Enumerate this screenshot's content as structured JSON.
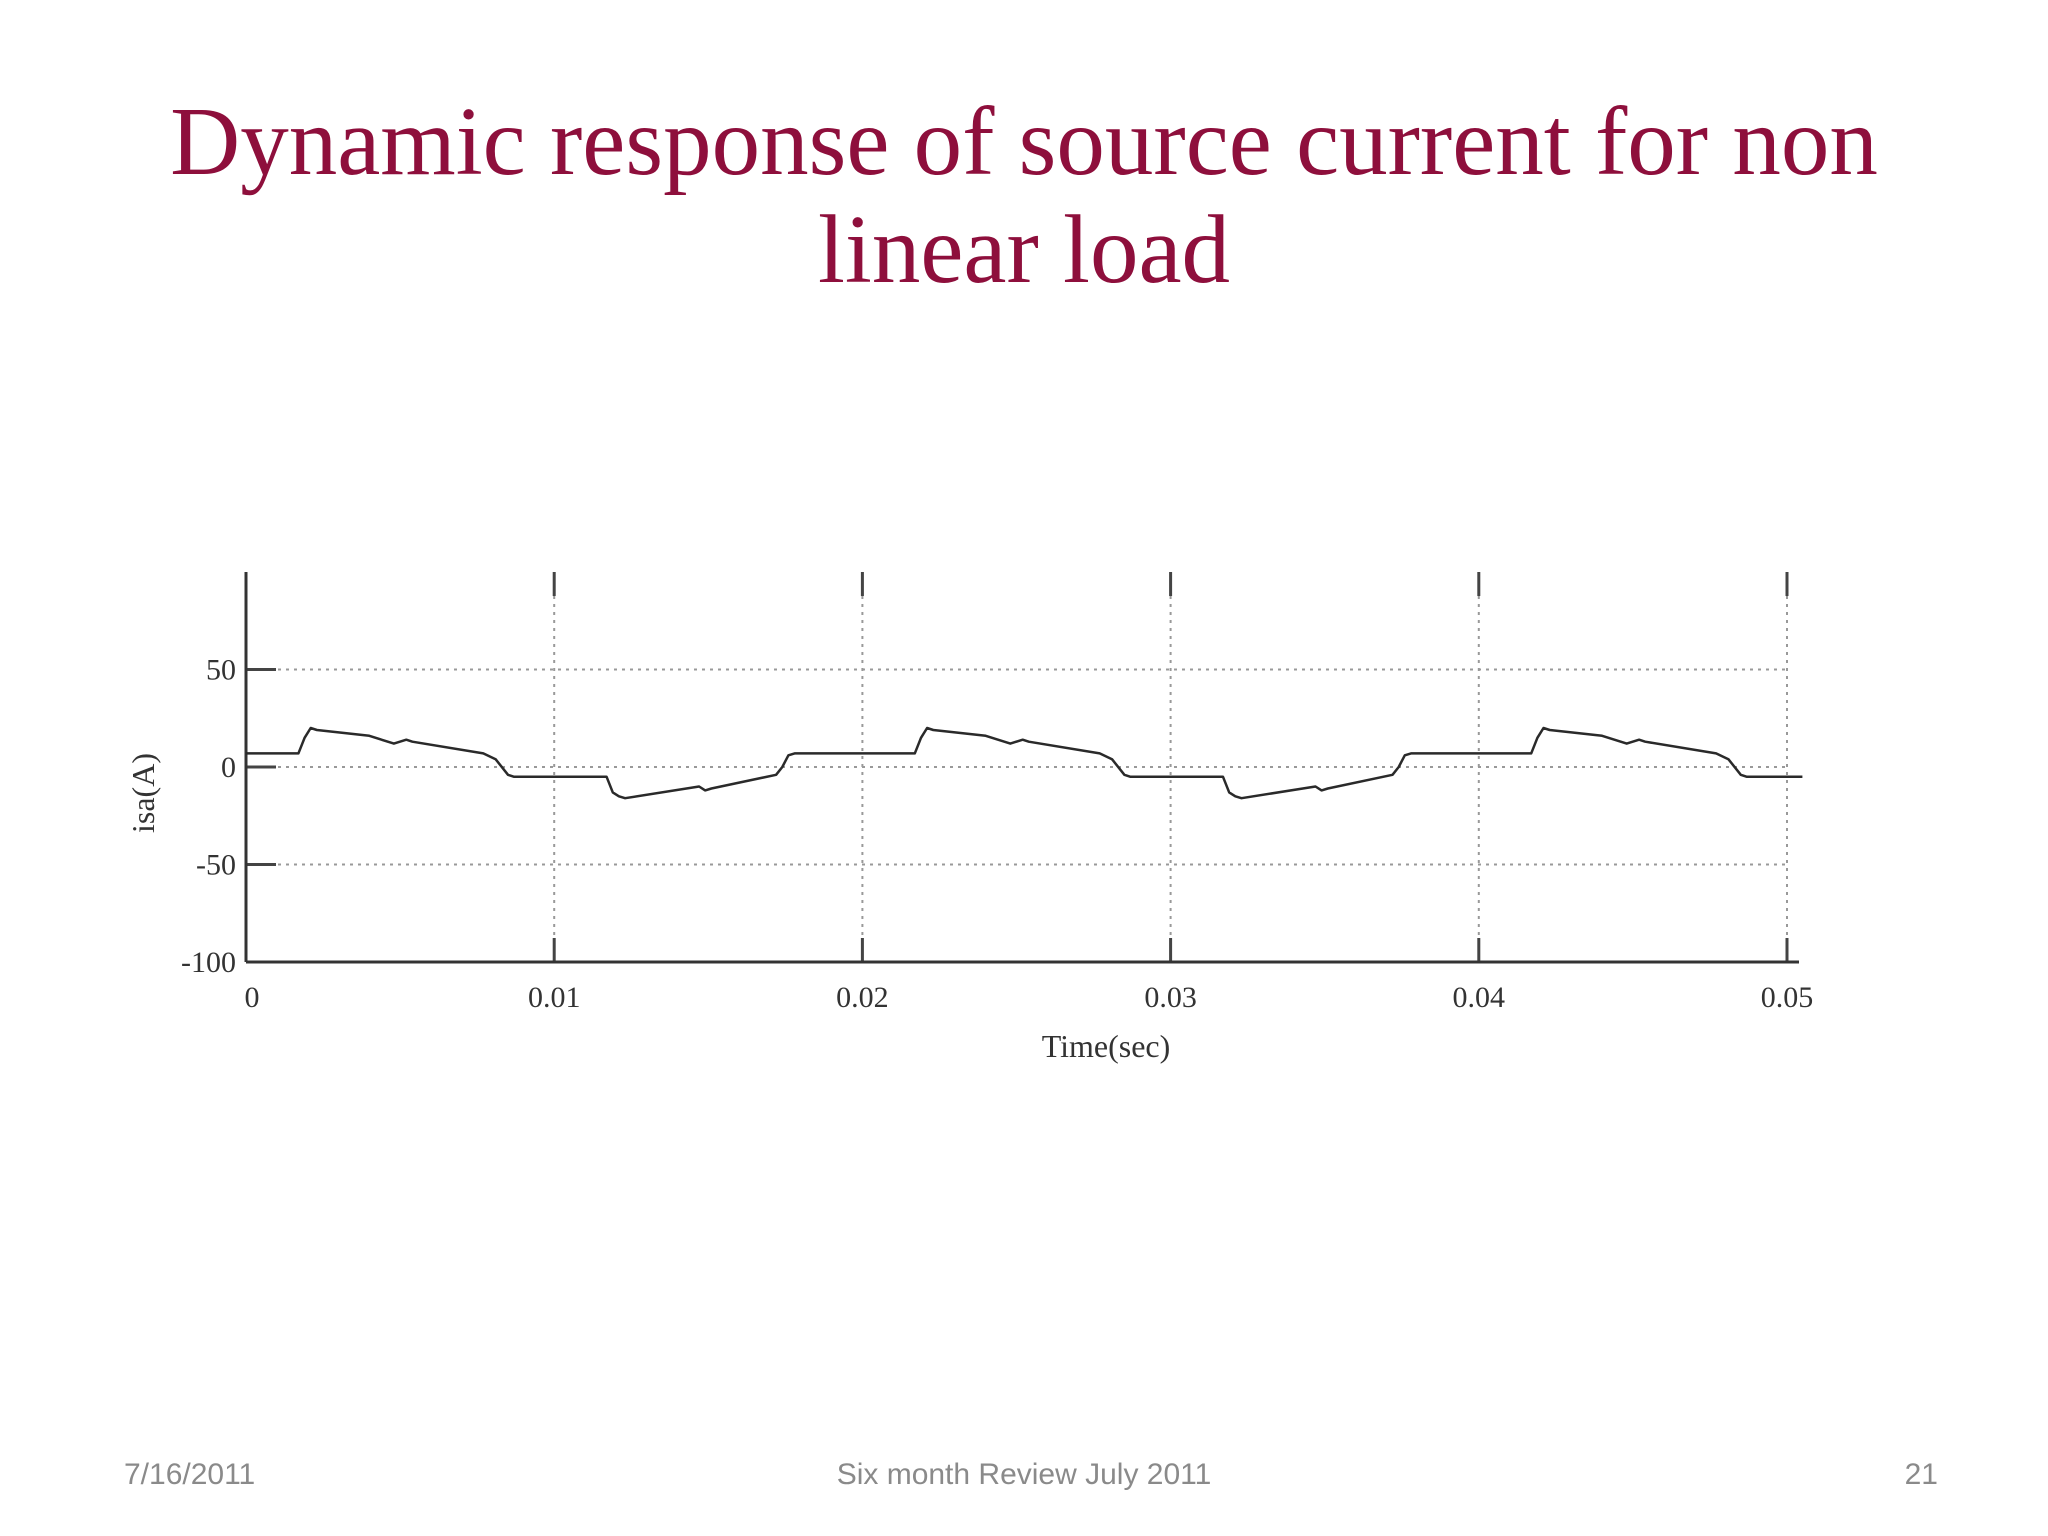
{
  "slide": {
    "title_line1": "Dynamic response of source current for non",
    "title_line2": "linear load",
    "title_color": "#8e0f3c"
  },
  "footer": {
    "date": "7/16/2011",
    "center": "Six month Review July 2011",
    "page": "21"
  },
  "chart_data": {
    "type": "line",
    "xlabel": "Time(sec)",
    "ylabel": "isa(A)",
    "xlim": [
      0,
      0.05
    ],
    "ylim": [
      -100,
      100
    ],
    "xticks": [
      0,
      0.01,
      0.02,
      0.03,
      0.04,
      0.05
    ],
    "xtick_labels": [
      "0",
      "0.01",
      "0.02",
      "0.03",
      "0.04",
      "0.05"
    ],
    "yticks": [
      50,
      0,
      -50,
      -100
    ],
    "ytick_labels": [
      "50",
      "0",
      "-50",
      "-100"
    ],
    "grid": true,
    "series": [
      {
        "x": [
          0,
          0.0017,
          0.0019,
          0.0021,
          0.0023,
          0.004,
          0.0048,
          0.0052,
          0.0054,
          0.0077,
          0.0081,
          0.0085,
          0.0087,
          0.0117,
          0.0119,
          0.0121,
          0.0123,
          0.0147,
          0.0149,
          0.0151,
          0.0172,
          0.0174,
          0.0176,
          0.0178,
          0.0217,
          0.0219,
          0.0221,
          0.0223,
          0.024,
          0.0248,
          0.0252,
          0.0254,
          0.0277,
          0.0281,
          0.0285,
          0.0287,
          0.0317,
          0.0319,
          0.0321,
          0.0323,
          0.0347,
          0.0349,
          0.0351,
          0.0372,
          0.0374,
          0.0376,
          0.0378,
          0.0417,
          0.0419,
          0.0421,
          0.0423,
          0.044,
          0.0448,
          0.0452,
          0.0454,
          0.0477,
          0.0481,
          0.0485,
          0.0487,
          0.0505
        ],
        "y": [
          7,
          7,
          15,
          20,
          19,
          16,
          12,
          14,
          13,
          7,
          4,
          -4,
          -5,
          -5,
          -13,
          -15,
          -16,
          -10,
          -12,
          -11,
          -4,
          0,
          6,
          7,
          7,
          15,
          20,
          19,
          16,
          12,
          14,
          13,
          7,
          4,
          -4,
          -5,
          -5,
          -13,
          -15,
          -16,
          -10,
          -12,
          -11,
          -4,
          0,
          6,
          7,
          7,
          15,
          20,
          19,
          16,
          12,
          14,
          13,
          7,
          4,
          -4,
          -5,
          -5
        ]
      }
    ]
  }
}
